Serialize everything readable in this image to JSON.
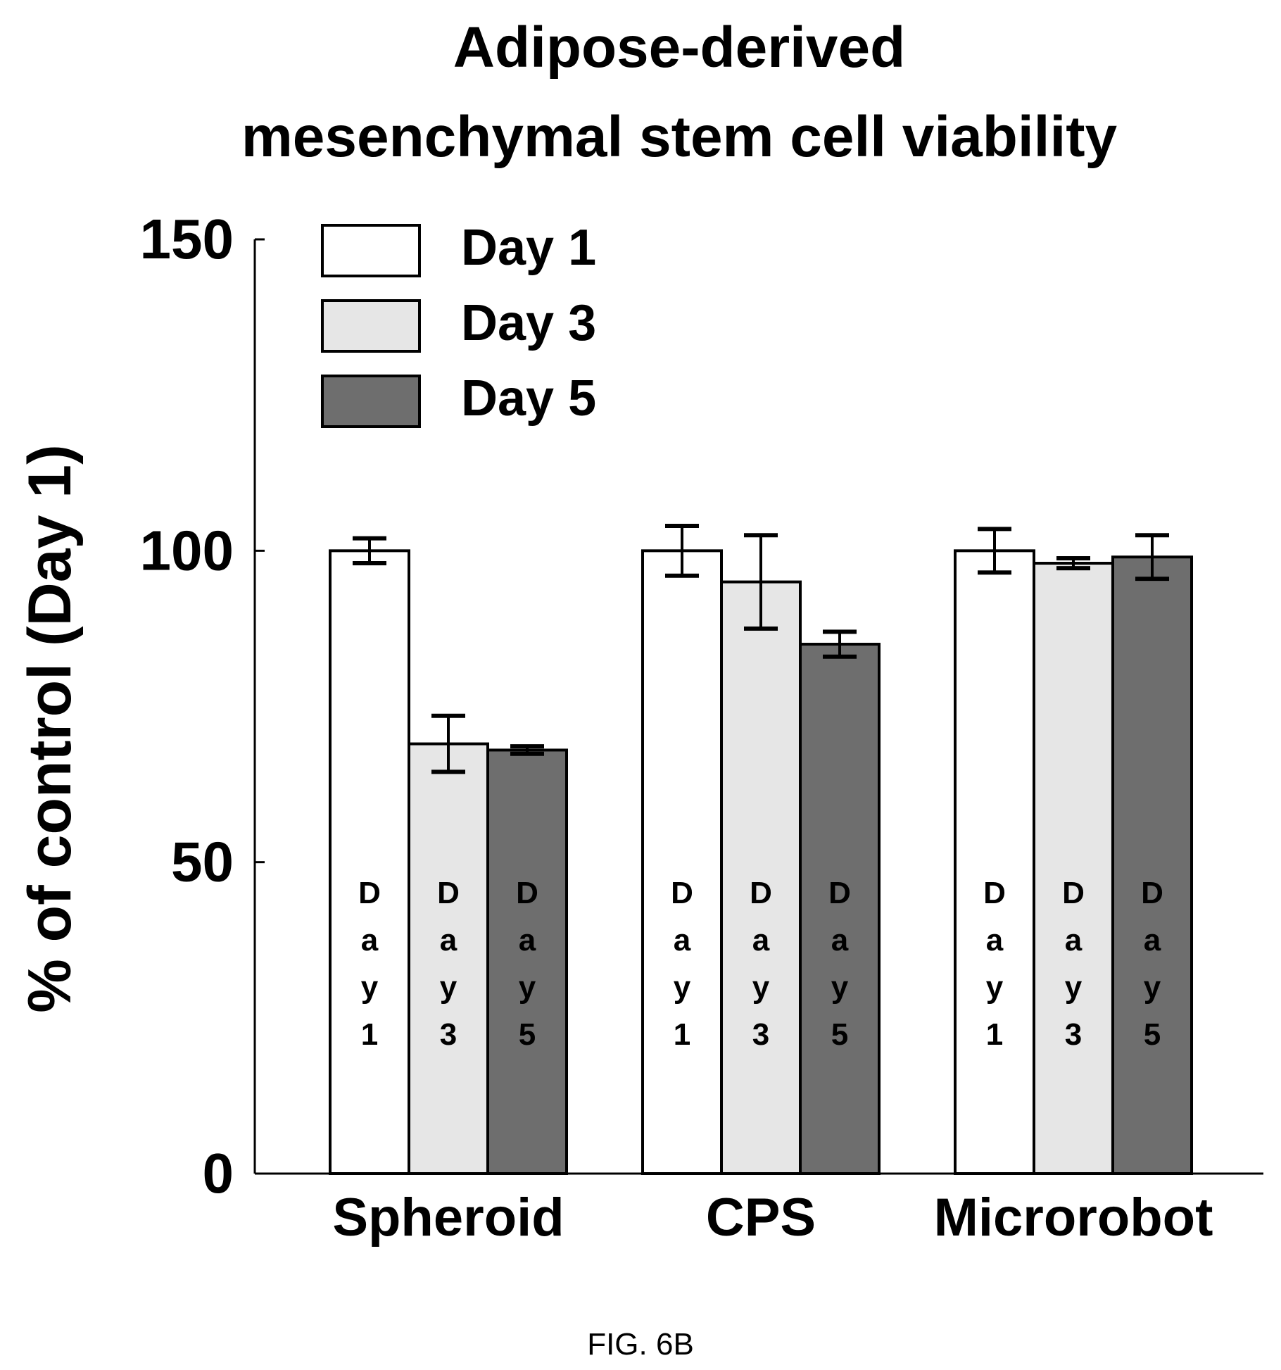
{
  "chart_data": {
    "type": "bar",
    "title": [
      "Adipose-derived",
      "mesenchymal stem cell viability"
    ],
    "ylabel": "% of control (Day 1)",
    "xlabel": "",
    "ylim": [
      0,
      150
    ],
    "yticks": [
      0,
      50,
      100,
      150
    ],
    "categories": [
      "Spheroid",
      "CPS",
      "Microrobot"
    ],
    "series": [
      {
        "name": "Day 1",
        "values": [
          100,
          100,
          100
        ],
        "errors": [
          2,
          4,
          3.5
        ],
        "color": "#ffffff",
        "label_chars": [
          "D",
          "a",
          "y",
          "1"
        ]
      },
      {
        "name": "Day 3",
        "values": [
          69,
          95,
          98
        ],
        "errors": [
          4.5,
          7.5,
          0.8
        ],
        "color": "#e6e6e6",
        "label_chars": [
          "D",
          "a",
          "y",
          "3"
        ]
      },
      {
        "name": "Day 5",
        "values": [
          68,
          85,
          99
        ],
        "errors": [
          0.6,
          2,
          3.5
        ],
        "color": "#6e6e6e",
        "label_chars": [
          "D",
          "a",
          "y",
          "5"
        ]
      }
    ],
    "legend_position": "top-left",
    "grid": false
  },
  "caption": "FIG. 6B"
}
